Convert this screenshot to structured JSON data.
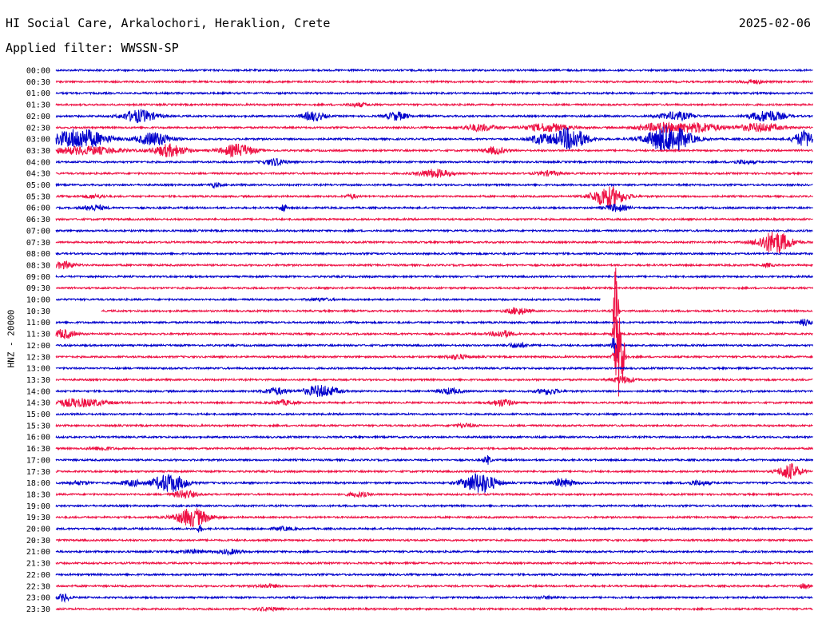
{
  "header": {
    "station": "HI Social Care, Arkalochori, Heraklion, Crete",
    "date": "2025-02-06",
    "filter": "Applied filter: WWSSN-SP",
    "axis_label": "HNZ - 20000"
  },
  "colors": {
    "even_rows": "#0000cc",
    "odd_rows": "#ee1144"
  },
  "chart_data": {
    "type": "line",
    "title": "HI Social Care, Arkalochori, Heraklion, Crete",
    "date": "2025-02-06",
    "filter": "WWSSN-SP",
    "ylabel": "HNZ - 20000",
    "row_minutes": 30,
    "rows": [
      {
        "label": "00:00",
        "events": []
      },
      {
        "label": "00:30",
        "events": [
          {
            "x": 0.92,
            "amp": 0.15,
            "w": 0.02
          }
        ]
      },
      {
        "label": "01:00",
        "events": []
      },
      {
        "label": "01:30",
        "events": [
          {
            "x": 0.4,
            "amp": 0.15,
            "w": 0.02
          }
        ]
      },
      {
        "label": "02:00",
        "events": [
          {
            "x": 0.11,
            "amp": 0.55,
            "w": 0.03
          },
          {
            "x": 0.34,
            "amp": 0.4,
            "w": 0.02
          },
          {
            "x": 0.45,
            "amp": 0.35,
            "w": 0.02
          },
          {
            "x": 0.82,
            "amp": 0.35,
            "w": 0.03
          },
          {
            "x": 0.94,
            "amp": 0.5,
            "w": 0.03
          }
        ]
      },
      {
        "label": "02:30",
        "events": [
          {
            "x": 0.56,
            "amp": 0.3,
            "w": 0.03
          },
          {
            "x": 0.65,
            "amp": 0.35,
            "w": 0.04
          },
          {
            "x": 0.8,
            "amp": 0.4,
            "w": 0.04
          },
          {
            "x": 0.85,
            "amp": 0.4,
            "w": 0.04
          },
          {
            "x": 0.93,
            "amp": 0.35,
            "w": 0.04
          }
        ]
      },
      {
        "label": "03:00",
        "events": [
          {
            "x": 0.03,
            "amp": 0.9,
            "w": 0.05
          },
          {
            "x": 0.13,
            "amp": 0.6,
            "w": 0.03
          },
          {
            "x": 0.64,
            "amp": 0.4,
            "w": 0.02
          },
          {
            "x": 0.68,
            "amp": 1.0,
            "w": 0.03
          },
          {
            "x": 0.81,
            "amp": 1.2,
            "w": 0.04
          },
          {
            "x": 0.99,
            "amp": 0.7,
            "w": 0.02
          }
        ]
      },
      {
        "label": "03:30",
        "events": [
          {
            "x": 0.04,
            "amp": 0.35,
            "w": 0.06
          },
          {
            "x": 0.15,
            "amp": 0.55,
            "w": 0.03
          },
          {
            "x": 0.24,
            "amp": 0.55,
            "w": 0.03
          },
          {
            "x": 0.58,
            "amp": 0.3,
            "w": 0.02
          }
        ]
      },
      {
        "label": "04:00",
        "events": [
          {
            "x": 0.29,
            "amp": 0.3,
            "w": 0.02
          },
          {
            "x": 0.91,
            "amp": 0.15,
            "w": 0.02
          }
        ]
      },
      {
        "label": "04:30",
        "events": [
          {
            "x": 0.5,
            "amp": 0.35,
            "w": 0.03
          },
          {
            "x": 0.65,
            "amp": 0.2,
            "w": 0.02
          }
        ]
      },
      {
        "label": "05:00",
        "events": [
          {
            "x": 0.21,
            "amp": 0.2,
            "w": 0.01
          }
        ]
      },
      {
        "label": "05:30",
        "events": [
          {
            "x": 0.05,
            "amp": 0.15,
            "w": 0.02
          },
          {
            "x": 0.39,
            "amp": 0.2,
            "w": 0.01
          },
          {
            "x": 0.73,
            "amp": 0.9,
            "w": 0.03
          }
        ]
      },
      {
        "label": "06:00",
        "events": [
          {
            "x": 0.05,
            "amp": 0.25,
            "w": 0.02
          },
          {
            "x": 0.3,
            "amp": 0.4,
            "w": 0.005
          },
          {
            "x": 0.74,
            "amp": 0.3,
            "w": 0.02
          }
        ]
      },
      {
        "label": "06:30",
        "events": []
      },
      {
        "label": "07:00",
        "events": []
      },
      {
        "label": "07:30",
        "events": [
          {
            "x": 0.95,
            "amp": 1.0,
            "w": 0.03
          }
        ]
      },
      {
        "label": "08:00",
        "events": []
      },
      {
        "label": "08:30",
        "events": [
          {
            "x": 0.01,
            "amp": 0.3,
            "w": 0.02
          },
          {
            "x": 0.94,
            "amp": 0.15,
            "w": 0.01
          }
        ]
      },
      {
        "label": "09:00",
        "events": []
      },
      {
        "label": "09:30",
        "events": []
      },
      {
        "label": "10:00",
        "events": [
          {
            "x": 0.35,
            "amp": 0.1,
            "w": 0.02
          }
        ],
        "end": 0.72
      },
      {
        "label": "10:30",
        "events": [
          {
            "x": 0.61,
            "amp": 0.3,
            "w": 0.02
          },
          {
            "x": 0.74,
            "amp": 4.0,
            "w": 0.004
          }
        ],
        "start": 0.06
      },
      {
        "label": "11:00",
        "events": [
          {
            "x": 0.99,
            "amp": 0.3,
            "w": 0.01
          }
        ]
      },
      {
        "label": "11:30",
        "events": [
          {
            "x": 0.01,
            "amp": 0.4,
            "w": 0.02
          },
          {
            "x": 0.59,
            "amp": 0.3,
            "w": 0.02
          },
          {
            "x": 0.74,
            "amp": 1.5,
            "w": 0.006
          }
        ]
      },
      {
        "label": "12:00",
        "events": [
          {
            "x": 0.61,
            "amp": 0.2,
            "w": 0.02
          },
          {
            "x": 0.74,
            "amp": 1.5,
            "w": 0.006
          }
        ]
      },
      {
        "label": "12:30",
        "events": [
          {
            "x": 0.53,
            "amp": 0.2,
            "w": 0.02
          },
          {
            "x": 0.745,
            "amp": 4.2,
            "w": 0.008
          }
        ]
      },
      {
        "label": "13:00",
        "events": []
      },
      {
        "label": "13:30",
        "events": [
          {
            "x": 0.75,
            "amp": 0.3,
            "w": 0.02
          }
        ]
      },
      {
        "label": "14:00",
        "events": [
          {
            "x": 0.29,
            "amp": 0.3,
            "w": 0.02
          },
          {
            "x": 0.35,
            "amp": 0.5,
            "w": 0.03
          },
          {
            "x": 0.52,
            "amp": 0.25,
            "w": 0.02
          },
          {
            "x": 0.65,
            "amp": 0.25,
            "w": 0.02
          }
        ]
      },
      {
        "label": "14:30",
        "events": [
          {
            "x": 0.03,
            "amp": 0.35,
            "w": 0.05
          },
          {
            "x": 0.3,
            "amp": 0.2,
            "w": 0.02
          },
          {
            "x": 0.59,
            "amp": 0.3,
            "w": 0.02
          }
        ]
      },
      {
        "label": "15:00",
        "events": []
      },
      {
        "label": "15:30",
        "events": [
          {
            "x": 0.54,
            "amp": 0.15,
            "w": 0.02
          }
        ]
      },
      {
        "label": "16:00",
        "events": []
      },
      {
        "label": "16:30",
        "events": [
          {
            "x": 0.06,
            "amp": 0.15,
            "w": 0.02
          }
        ]
      },
      {
        "label": "17:00",
        "events": [
          {
            "x": 0.57,
            "amp": 0.4,
            "w": 0.006
          }
        ]
      },
      {
        "label": "17:30",
        "events": [
          {
            "x": 0.97,
            "amp": 0.7,
            "w": 0.02
          }
        ]
      },
      {
        "label": "18:00",
        "events": [
          {
            "x": 0.03,
            "amp": 0.15,
            "w": 0.02
          },
          {
            "x": 0.1,
            "amp": 0.25,
            "w": 0.02
          },
          {
            "x": 0.15,
            "amp": 0.8,
            "w": 0.03
          },
          {
            "x": 0.56,
            "amp": 0.9,
            "w": 0.03
          },
          {
            "x": 0.67,
            "amp": 0.35,
            "w": 0.02
          },
          {
            "x": 0.85,
            "amp": 0.2,
            "w": 0.02
          }
        ]
      },
      {
        "label": "18:30",
        "events": [
          {
            "x": 0.17,
            "amp": 0.35,
            "w": 0.02
          },
          {
            "x": 0.4,
            "amp": 0.2,
            "w": 0.02
          }
        ]
      },
      {
        "label": "19:00",
        "events": []
      },
      {
        "label": "19:30",
        "events": [
          {
            "x": 0.18,
            "amp": 0.8,
            "w": 0.03
          }
        ]
      },
      {
        "label": "20:00",
        "events": [
          {
            "x": 0.19,
            "amp": 0.3,
            "w": 0.005
          },
          {
            "x": 0.3,
            "amp": 0.15,
            "w": 0.02
          }
        ]
      },
      {
        "label": "20:30",
        "events": []
      },
      {
        "label": "21:00",
        "events": [
          {
            "x": 0.18,
            "amp": 0.15,
            "w": 0.02
          },
          {
            "x": 0.23,
            "amp": 0.2,
            "w": 0.02
          }
        ]
      },
      {
        "label": "21:30",
        "events": []
      },
      {
        "label": "22:00",
        "events": []
      },
      {
        "label": "22:30",
        "events": [
          {
            "x": 0.28,
            "amp": 0.15,
            "w": 0.02
          },
          {
            "x": 0.99,
            "amp": 0.2,
            "w": 0.01
          }
        ]
      },
      {
        "label": "23:00",
        "events": [
          {
            "x": 0.01,
            "amp": 0.35,
            "w": 0.01
          },
          {
            "x": 0.65,
            "amp": 0.1,
            "w": 0.02
          }
        ]
      },
      {
        "label": "23:30",
        "events": [
          {
            "x": 0.28,
            "amp": 0.15,
            "w": 0.02
          }
        ]
      }
    ]
  }
}
